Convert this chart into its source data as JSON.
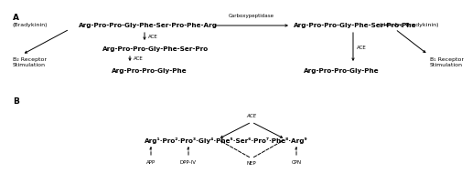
{
  "title_A": "A",
  "title_B": "B",
  "bg_color": "#ffffff",
  "panel_A": {
    "bradykinin_label": "(Bradykinin)",
    "top_peptide": "Arg-Pro-Pro-Gly-Phe-Ser-Pro-Phe-Arg",
    "carboxypeptidase": "Carboxypeptidase",
    "des_arg_label": "(des-Arg Bradykinin)",
    "right_peptide": "Arg-Pro-Pro-Gly-Phe-Ser-Pro-Phe",
    "mid_left_peptide": "Arg-Pro-Pro-Gly-Phe-Ser-Pro",
    "bottom_left_peptide": "Arg-Pro-Pro-Gly-Phe",
    "bottom_right_peptide": "Arg-Pro-Pro-Gly-Phe",
    "B2_label": "B₂ Receptor\nStimulation",
    "B1_label": "B₁ Receptor\nStimulation",
    "ACE1": "ACE",
    "ACE2": "ACE",
    "ACE3": "ACE"
  },
  "panel_B": {
    "sequence": "Arg¹·Pro²·Pro³·Gly⁴·Phe⁵·Ser⁶·Pro⁷·Phe⁸·Arg⁹",
    "ACE_label": "ACE",
    "APP_label": "APP",
    "DPPIV_label": "DPP-IV",
    "NEP_label": "NEP",
    "CPN_label": "CPN"
  }
}
